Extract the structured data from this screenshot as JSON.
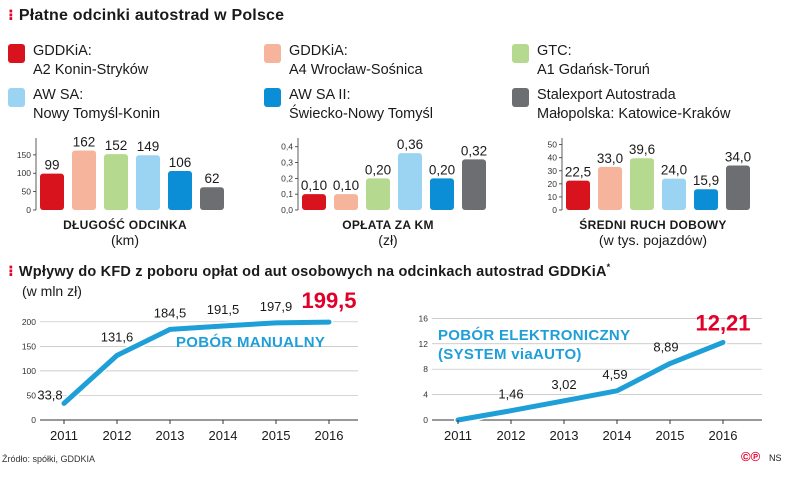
{
  "heading1": "Płatne odcinki autostrad w Polsce",
  "heading2": "Wpływy do KFD z poboru opłat od aut osobowych na odcinkach autostrad GDDKiA",
  "heading2_note": "*",
  "legend": [
    {
      "line1": "GDDKiA:",
      "line2": "A2 Konin-Stryków",
      "color": "#d9131e"
    },
    {
      "line1": "GDDKiA:",
      "line2": "A4 Wrocław-Sośnica",
      "color": "#f5b49b"
    },
    {
      "line1": "GTC:",
      "line2": "A1 Gdańsk-Toruń",
      "color": "#b5d98f"
    },
    {
      "line1": "AW SA:",
      "line2": "Nowy Tomyśl-Konin",
      "color": "#9bd3f2"
    },
    {
      "line1": "AW SA II:",
      "line2": "Świecko-Nowy Tomyśl",
      "color": "#0b8ed6"
    },
    {
      "line1": "Stalexport Autostrada",
      "line2": "Małopolska: Katowice-Kraków",
      "color": "#6d6e71"
    }
  ],
  "bar_captions": [
    {
      "title": "DŁUGOŚĆ ODCINKA",
      "unit": "(km)"
    },
    {
      "title": "OPŁATA ZA KM",
      "unit": "(zł)"
    },
    {
      "title": "ŚREDNI RUCH DOBOWY",
      "unit": "(w tys. pojazdów)"
    }
  ],
  "line_unit": "(w mln zł)",
  "source": "Źródło: spółki, GDDKIA",
  "credit": "NS",
  "logo_text": "©℗",
  "chart_data": [
    {
      "type": "bar",
      "title": "DŁUGOŚĆ ODCINKA",
      "ylabel": "(km)",
      "categories": [
        "GDDKiA: A2 Konin-Stryków",
        "GDDKiA: A4 Wrocław-Sośnica",
        "GTC: A1 Gdańsk-Toruń",
        "AW SA: Nowy Tomyśl-Konin",
        "AW SA II: Świecko-Nowy Tomyśl",
        "Stalexport Autostrada Małopolska: Katowice-Kraków"
      ],
      "values": [
        99,
        162,
        152,
        149,
        106,
        62
      ],
      "labels": [
        "99",
        "162",
        "152",
        "149",
        "106",
        "62"
      ],
      "yticks": [
        0,
        50,
        100,
        150
      ],
      "ytick_labels": [
        "0",
        "50",
        "100",
        "150"
      ],
      "ylim": [
        0,
        185
      ],
      "colors": [
        "#d9131e",
        "#f5b49b",
        "#b5d98f",
        "#9bd3f2",
        "#0b8ed6",
        "#6d6e71"
      ]
    },
    {
      "type": "bar",
      "title": "OPŁATA ZA KM",
      "ylabel": "(zł)",
      "categories": [
        "GDDKiA: A2 Konin-Stryków",
        "GDDKiA: A4 Wrocław-Sośnica",
        "GTC: A1 Gdańsk-Toruń",
        "AW SA: Nowy Tomyśl-Konin",
        "AW SA II: Świecko-Nowy Tomyśl",
        "Stalexport Autostrada Małopolska: Katowice-Kraków"
      ],
      "values": [
        0.1,
        0.1,
        0.2,
        0.36,
        0.2,
        0.32
      ],
      "labels": [
        "0,10",
        "0,10",
        "0,20",
        "0,36",
        "0,20",
        "0,32"
      ],
      "yticks": [
        0,
        0.1,
        0.2,
        0.3,
        0.4
      ],
      "ytick_labels": [
        "0,0",
        "0,1",
        "0,2",
        "0,3",
        "0,4"
      ],
      "ylim": [
        0,
        0.43
      ],
      "colors": [
        "#d9131e",
        "#f5b49b",
        "#b5d98f",
        "#9bd3f2",
        "#0b8ed6",
        "#6d6e71"
      ]
    },
    {
      "type": "bar",
      "title": "ŚREDNI RUCH DOBOWY",
      "ylabel": "(w tys. pojazdów)",
      "categories": [
        "GDDKiA: A2 Konin-Stryków",
        "GDDKiA: A4 Wrocław-Sośnica",
        "GTC: A1 Gdańsk-Toruń",
        "AW SA: Nowy Tomyśl-Konin",
        "AW SA II: Świecko-Nowy Tomyśl",
        "Stalexport Autostrada Małopolska: Katowice-Kraków"
      ],
      "values": [
        22.5,
        33.0,
        39.6,
        24.0,
        15.9,
        34.0
      ],
      "labels": [
        "22,5",
        "33,0",
        "39,6",
        "24,0",
        "15,9",
        "34,0"
      ],
      "yticks": [
        0,
        10,
        20,
        30,
        40,
        50
      ],
      "ytick_labels": [
        "0",
        "10",
        "20",
        "30",
        "40",
        "50"
      ],
      "ylim": [
        0,
        52
      ],
      "colors": [
        "#d9131e",
        "#f5b49b",
        "#b5d98f",
        "#9bd3f2",
        "#0b8ed6",
        "#6d6e71"
      ]
    },
    {
      "type": "line",
      "title": "POBÓR MANUALNY",
      "ylabel": "(w mln zł)",
      "x": [
        "2011",
        "2012",
        "2013",
        "2014",
        "2015",
        "2016"
      ],
      "series": [
        {
          "name": "POBÓR MANUALNY",
          "values": [
            33.8,
            131.6,
            184.5,
            191.5,
            197.9,
            199.5
          ]
        }
      ],
      "labels": [
        "33,8",
        "131,6",
        "184,5",
        "191,5",
        "197,9",
        "199,5"
      ],
      "yticks": [
        0,
        50,
        100,
        150,
        200
      ],
      "ytick_labels": [
        "0",
        "50",
        "100",
        "150",
        "200"
      ],
      "ylim": [
        0,
        220
      ],
      "color": "#1e9fd8",
      "highlight_color": "#e2002a"
    },
    {
      "type": "line",
      "title": "POBÓR ELEKTRONICZNY (SYSTEM viaAUTO)",
      "ylabel": "",
      "x": [
        "2011",
        "2012",
        "2013",
        "2014",
        "2015",
        "2016"
      ],
      "series": [
        {
          "name": "POBÓR ELEKTRONICZNY (SYSTEM viaAUTO)",
          "values": [
            0,
            1.46,
            3.02,
            4.59,
            8.89,
            12.21
          ]
        }
      ],
      "labels": [
        "",
        "1,46",
        "3,02",
        "4,59",
        "8,89",
        "12,21"
      ],
      "yticks": [
        0,
        4,
        8,
        12,
        16
      ],
      "ytick_labels": [
        "0",
        "4",
        "8",
        "12",
        "16"
      ],
      "ylim": [
        0,
        17
      ],
      "color": "#1e9fd8",
      "highlight_color": "#e2002a"
    }
  ],
  "line_titles": [
    {
      "lines": [
        "POBÓR MANUALNY"
      ]
    },
    {
      "lines": [
        "POBÓR ELEKTRONICZNY",
        "(SYSTEM viaAUTO)"
      ]
    }
  ]
}
